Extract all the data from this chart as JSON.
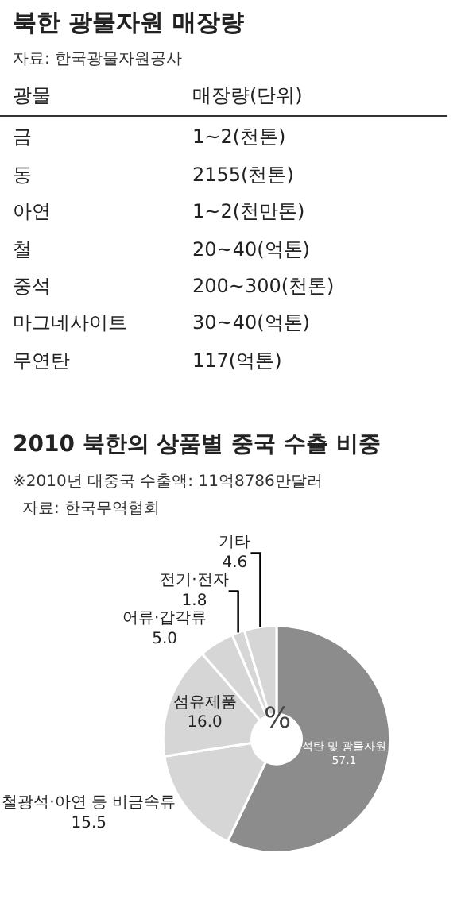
{
  "chart_data": [
    {
      "type": "other",
      "title": "북한 광물자원 매장량",
      "annotations": [
        "자료: 한국광물자원공사"
      ],
      "categories": [
        "광물",
        "매장량(단위)"
      ],
      "y_categories": [
        "금",
        "동",
        "아연",
        "철",
        "중석",
        "마그네사이트",
        "무연탄"
      ],
      "cell_labels": [
        [
          "1~2(천톤)"
        ],
        [
          "2155(천톤)"
        ],
        [
          "1~2(천만톤)"
        ],
        [
          "20~40(억톤)"
        ],
        [
          "200~300(천톤)"
        ],
        [
          "30~40(억톤)"
        ],
        [
          "117(억톤)"
        ]
      ]
    },
    {
      "type": "donut",
      "title": "2010 북한의 상품별 중국 수출 비중",
      "annotations": [
        "※2010년 대중국 수출액: 11억8786만달러",
        "자료: 한국무역협회",
        "%"
      ],
      "categories": [
        "석탄 및 광물자원",
        "철광석·아연 등 비금속류",
        "섬유제품",
        "어류·갑각류",
        "전기·전자",
        "기타"
      ],
      "values": [
        57.1,
        15.5,
        16.0,
        5.0,
        1.8,
        4.6
      ],
      "value_labels": [
        "57.1",
        "15.5",
        "16.0",
        "5.0",
        "1.8",
        "4.6"
      ],
      "colors": [
        "#8c8c8c",
        "#d6d6d6",
        "#d6d6d6",
        "#d6d6d6",
        "#d6d6d6",
        "#d6d6d6"
      ],
      "data_labels": true
    }
  ]
}
